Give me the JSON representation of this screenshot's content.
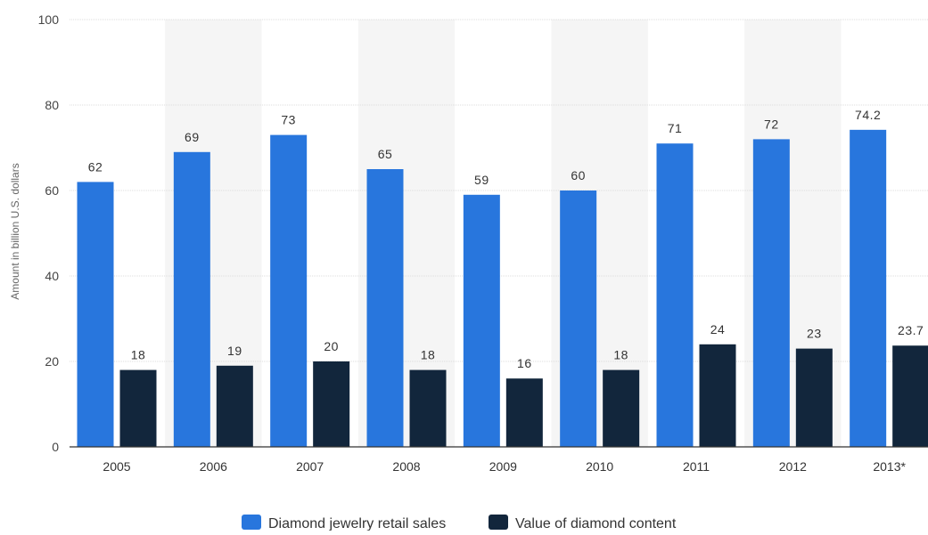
{
  "chart_data": {
    "type": "bar",
    "categories": [
      "2005",
      "2006",
      "2007",
      "2008",
      "2009",
      "2010",
      "2011",
      "2012",
      "2013*"
    ],
    "series": [
      {
        "name": "Diamond jewelry retail sales",
        "values": [
          62,
          69,
          73,
          65,
          59,
          60,
          71,
          72,
          74.2
        ],
        "labels": [
          "62",
          "69",
          "73",
          "65",
          "59",
          "60",
          "71",
          "72",
          "74.2"
        ],
        "color": "#2876dd"
      },
      {
        "name": "Value of diamond content",
        "values": [
          18,
          19,
          20,
          18,
          16,
          18,
          24,
          23,
          23.7
        ],
        "labels": [
          "18",
          "19",
          "20",
          "18",
          "16",
          "18",
          "24",
          "23",
          "23.7"
        ],
        "color": "#12263c"
      }
    ],
    "ylabel": "Amount in billion U.S. dollars",
    "ylim": [
      0,
      100
    ],
    "yticks": [
      "0",
      "20",
      "40",
      "60",
      "80",
      "100"
    ],
    "grid": true,
    "alternating_band_color": "#f5f5f5",
    "legend": "bottom-center"
  }
}
